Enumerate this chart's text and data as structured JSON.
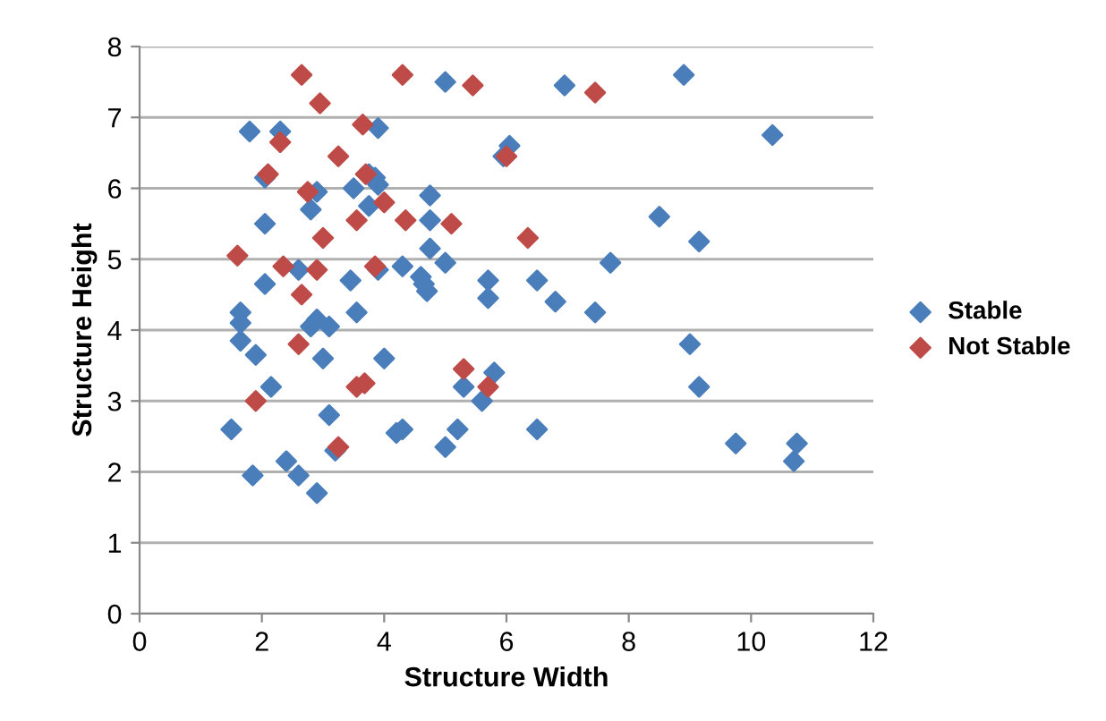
{
  "chart_data": {
    "type": "scatter",
    "xlabel": "Structure Width",
    "ylabel": "Structure Height",
    "xlim": [
      0,
      12
    ],
    "ylim": [
      0,
      8
    ],
    "xticks": [
      0,
      2,
      4,
      6,
      8,
      10,
      12
    ],
    "yticks": [
      0,
      1,
      2,
      3,
      4,
      5,
      6,
      7,
      8
    ],
    "grid": "y",
    "legend": "right",
    "marker": "diamond",
    "series": [
      {
        "name": "Stable",
        "color": "#4a7ebb",
        "x": [
          1.5,
          1.65,
          1.65,
          1.65,
          1.8,
          1.85,
          1.9,
          2.05,
          2.05,
          2.05,
          2.15,
          2.3,
          2.4,
          2.6,
          2.6,
          2.8,
          2.8,
          2.9,
          2.9,
          2.9,
          3.0,
          3.1,
          3.1,
          3.2,
          3.45,
          3.5,
          3.55,
          3.75,
          3.75,
          3.85,
          3.9,
          3.9,
          3.9,
          4.0,
          4.2,
          4.3,
          4.3,
          4.6,
          4.65,
          4.7,
          4.75,
          4.75,
          4.75,
          5.0,
          5.0,
          5.0,
          5.2,
          5.3,
          5.6,
          5.7,
          5.7,
          5.8,
          5.95,
          6.05,
          6.5,
          6.5,
          6.8,
          6.95,
          7.45,
          7.7,
          8.5,
          8.9,
          9.0,
          9.15,
          9.15,
          9.75,
          10.35,
          10.7,
          10.75
        ],
        "values": [
          2.6,
          4.25,
          4.1,
          3.85,
          6.8,
          1.95,
          3.65,
          6.15,
          5.5,
          4.65,
          3.2,
          6.8,
          2.15,
          1.95,
          4.85,
          5.7,
          4.05,
          1.7,
          4.15,
          5.95,
          3.6,
          2.8,
          4.05,
          2.3,
          4.7,
          6.0,
          4.25,
          5.75,
          6.2,
          6.15,
          6.05,
          6.85,
          4.85,
          3.6,
          2.55,
          2.6,
          4.9,
          4.75,
          4.65,
          4.55,
          5.9,
          5.55,
          5.15,
          7.5,
          4.95,
          2.35,
          2.6,
          3.2,
          3.0,
          4.7,
          4.45,
          3.4,
          6.45,
          6.6,
          4.7,
          2.6,
          4.4,
          7.45,
          4.25,
          4.95,
          5.6,
          7.6,
          3.8,
          3.2,
          5.25,
          2.4,
          6.75,
          2.15,
          2.4
        ]
      },
      {
        "name": "Not Stable",
        "color": "#be4b48",
        "x": [
          1.6,
          1.9,
          2.1,
          2.3,
          2.35,
          2.6,
          2.65,
          2.65,
          2.75,
          2.9,
          2.95,
          3.0,
          3.25,
          3.25,
          3.55,
          3.55,
          3.68,
          3.65,
          3.7,
          3.85,
          4.0,
          4.3,
          4.35,
          5.1,
          5.3,
          5.45,
          5.7,
          6.0,
          6.35,
          7.45
        ],
        "values": [
          5.05,
          3.0,
          6.2,
          6.65,
          4.9,
          3.8,
          4.5,
          7.6,
          5.95,
          4.85,
          7.2,
          5.3,
          2.35,
          6.45,
          5.55,
          3.2,
          3.25,
          6.9,
          6.2,
          4.9,
          5.8,
          7.6,
          5.55,
          5.5,
          3.45,
          7.45,
          3.2,
          6.45,
          5.3,
          7.35
        ]
      }
    ]
  }
}
